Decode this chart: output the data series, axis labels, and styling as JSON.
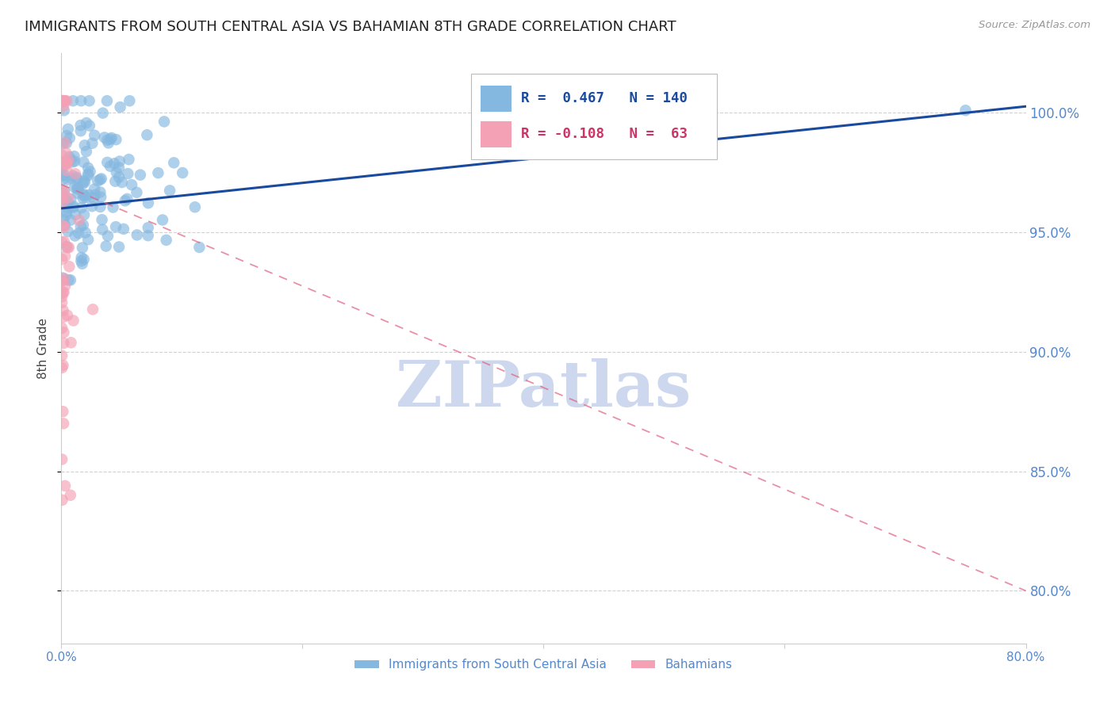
{
  "title": "IMMIGRANTS FROM SOUTH CENTRAL ASIA VS BAHAMIAN 8TH GRADE CORRELATION CHART",
  "source": "Source: ZipAtlas.com",
  "ylabel": "8th Grade",
  "y_tick_labels": [
    "100.0%",
    "95.0%",
    "90.0%",
    "85.0%",
    "80.0%"
  ],
  "y_tick_values": [
    1.0,
    0.95,
    0.9,
    0.85,
    0.8
  ],
  "xlim": [
    0.0,
    0.8
  ],
  "ylim": [
    0.778,
    1.025
  ],
  "blue_r": 0.467,
  "blue_n": 140,
  "pink_r": -0.108,
  "pink_n": 63,
  "blue_color": "#85b8e0",
  "pink_color": "#f4a0b5",
  "blue_line_color": "#1a4a9e",
  "pink_line_color": "#e06080",
  "legend_label_blue": "Immigrants from South Central Asia",
  "legend_label_pink": "Bahamians",
  "watermark": "ZIPatlas",
  "watermark_color": "#cdd8ee",
  "title_fontsize": 13,
  "axis_label_color": "#5588cc",
  "background_color": "#ffffff"
}
